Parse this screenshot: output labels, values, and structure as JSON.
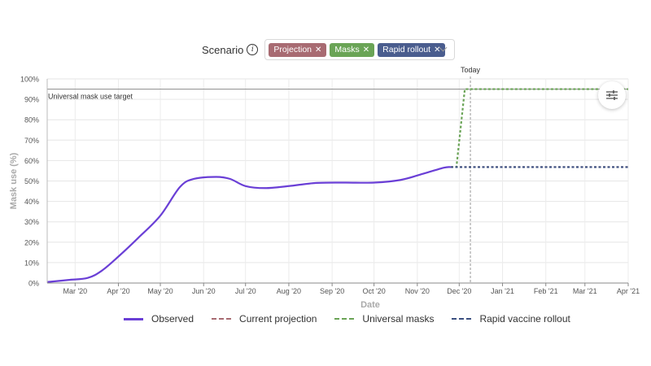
{
  "scenario": {
    "label": "Scenario",
    "info_icon": "info-icon",
    "chips": [
      {
        "label": "Projection",
        "color": "#a86b72"
      },
      {
        "label": "Masks",
        "color": "#6aa456"
      },
      {
        "label": "Rapid rollout",
        "color": "#4a5d8e"
      }
    ],
    "dropdown_icon": "chevron-down-icon"
  },
  "settings_icon": "sliders-icon",
  "chart_data": {
    "type": "line",
    "xlabel": "Date",
    "ylabel": "Mask use (%)",
    "ylim": [
      0,
      100
    ],
    "yticks": [
      "0%",
      "10%",
      "20%",
      "30%",
      "40%",
      "50%",
      "60%",
      "70%",
      "80%",
      "90%",
      "100%"
    ],
    "xlim": [
      "2020-02-10",
      "2021-04-01"
    ],
    "xticks": [
      {
        "date": "2020-03-01",
        "label": "Mar '20"
      },
      {
        "date": "2020-04-01",
        "label": "Apr '20"
      },
      {
        "date": "2020-05-01",
        "label": "May '20"
      },
      {
        "date": "2020-06-01",
        "label": "Jun '20"
      },
      {
        "date": "2020-07-01",
        "label": "Jul '20"
      },
      {
        "date": "2020-08-01",
        "label": "Aug '20"
      },
      {
        "date": "2020-09-01",
        "label": "Sep '20"
      },
      {
        "date": "2020-10-01",
        "label": "Oct '20"
      },
      {
        "date": "2020-11-01",
        "label": "Nov '20"
      },
      {
        "date": "2020-12-01",
        "label": "Dec '20"
      },
      {
        "date": "2021-01-01",
        "label": "Jan '21"
      },
      {
        "date": "2021-02-01",
        "label": "Feb '21"
      },
      {
        "date": "2021-03-01",
        "label": "Mar '21"
      },
      {
        "date": "2021-04-01",
        "label": "Apr '21"
      }
    ],
    "grid": true,
    "reference_line": {
      "label": "Universal mask use target",
      "y": 95
    },
    "today_marker": {
      "label": "Today",
      "date": "2020-12-09"
    },
    "series": [
      {
        "name": "Observed",
        "color": "#6a3fd6",
        "style": "solid",
        "points": [
          [
            "2020-02-10",
            0.5
          ],
          [
            "2020-02-25",
            1.5
          ],
          [
            "2020-03-10",
            2.5
          ],
          [
            "2020-03-20",
            6
          ],
          [
            "2020-04-01",
            13
          ],
          [
            "2020-04-15",
            22
          ],
          [
            "2020-05-01",
            33
          ],
          [
            "2020-05-15",
            47
          ],
          [
            "2020-05-25",
            51
          ],
          [
            "2020-06-10",
            52
          ],
          [
            "2020-06-20",
            51
          ],
          [
            "2020-07-01",
            47.5
          ],
          [
            "2020-07-15",
            46.5
          ],
          [
            "2020-08-01",
            47.5
          ],
          [
            "2020-08-20",
            49
          ],
          [
            "2020-09-10",
            49.2
          ],
          [
            "2020-10-01",
            49.2
          ],
          [
            "2020-10-20",
            50.5
          ],
          [
            "2020-11-05",
            53.5
          ],
          [
            "2020-11-20",
            56.5
          ],
          [
            "2020-11-25",
            56.8
          ]
        ]
      },
      {
        "name": "Current projection",
        "color": "#a86b72",
        "style": "dashed",
        "points": [
          [
            "2020-11-25",
            56.8
          ],
          [
            "2021-04-01",
            56.8
          ]
        ]
      },
      {
        "name": "Universal masks",
        "color": "#6aa456",
        "style": "dashed",
        "points": [
          [
            "2020-11-25",
            56.8
          ],
          [
            "2020-11-29",
            56.8
          ],
          [
            "2020-12-05",
            95
          ],
          [
            "2021-04-01",
            95
          ]
        ]
      },
      {
        "name": "Rapid vaccine rollout",
        "color": "#3b4f80",
        "style": "dashed",
        "points": [
          [
            "2020-11-25",
            56.8
          ],
          [
            "2021-04-01",
            56.8
          ]
        ]
      }
    ]
  }
}
